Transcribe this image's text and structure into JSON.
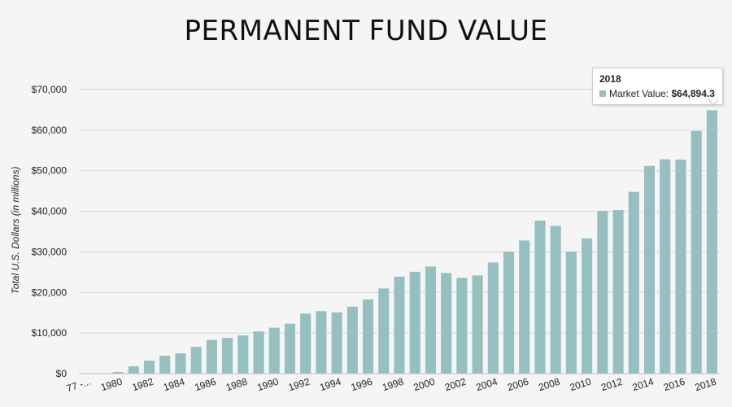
{
  "chart_data": {
    "type": "bar",
    "title": "PERMANENT FUND VALUE",
    "xlabel": "",
    "ylabel": "Total U.S. Dollars (in millions)",
    "ylim": [
      0,
      70000
    ],
    "yticks": [
      0,
      10000,
      20000,
      30000,
      40000,
      50000,
      60000,
      70000
    ],
    "ytick_labels": [
      "$0",
      "$10,000",
      "$20,000",
      "$30,000",
      "$40,000",
      "$50,000",
      "$60,000",
      "$70,000"
    ],
    "grid": true,
    "bar_color": "#96bfbf",
    "categories": [
      "77 - 78",
      "1979",
      "1980",
      "1981",
      "1982",
      "1983",
      "1984",
      "1985",
      "1986",
      "1987",
      "1988",
      "1989",
      "1990",
      "1991",
      "1992",
      "1993",
      "1994",
      "1995",
      "1996",
      "1997",
      "1998",
      "1999",
      "2000",
      "2001",
      "2002",
      "2003",
      "2004",
      "2005",
      "2006",
      "2007",
      "2008",
      "2009",
      "2010",
      "2011",
      "2012",
      "2013",
      "2014",
      "2015",
      "2016",
      "2017",
      "2018"
    ],
    "xtick_labels_shown": [
      "77 -...",
      "1980",
      "1982",
      "1984",
      "1986",
      "1988",
      "1990",
      "1992",
      "1994",
      "1996",
      "1998",
      "2000",
      "2002",
      "2004",
      "2006",
      "2008",
      "2010",
      "2012",
      "2014",
      "2016",
      "2018"
    ],
    "series": [
      {
        "name": "Market Value",
        "values": [
          30,
          110,
          400,
          1800,
          3200,
          4400,
          5000,
          6600,
          8300,
          8800,
          9400,
          10400,
          11300,
          12300,
          14800,
          15400,
          15100,
          16500,
          18300,
          21000,
          23900,
          25100,
          26400,
          24800,
          23600,
          24200,
          27400,
          30000,
          32800,
          37700,
          36400,
          30000,
          33300,
          40100,
          40300,
          44800,
          51200,
          52800,
          52700,
          59800,
          64894.3
        ]
      }
    ],
    "tooltip": {
      "year": "2018",
      "series_label": "Market Value:",
      "value_label": "$64,894.3"
    }
  }
}
